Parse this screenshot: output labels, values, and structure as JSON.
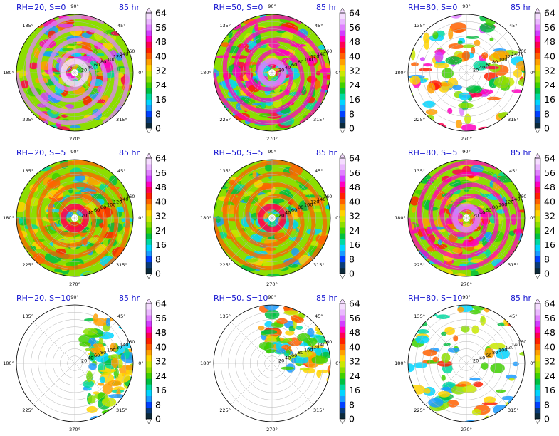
{
  "chart_data": [
    {
      "type": "polar-contourf",
      "title": "RH=20, S=0",
      "time": "85 hr",
      "rh": 20,
      "shear": 0,
      "max_level": "64",
      "core": "warm-asymmetric",
      "coverage": 0.92
    },
    {
      "type": "polar-contourf",
      "title": "RH=50, S=0",
      "time": "85 hr",
      "rh": 50,
      "shear": 0,
      "max_level": "56",
      "core": "warm-ring",
      "coverage": 0.95
    },
    {
      "type": "polar-contourf",
      "title": "RH=80, S=0",
      "time": "85 hr",
      "rh": 80,
      "shear": 0,
      "max_level": "64",
      "core": "compact-intense-ring",
      "coverage": 0.6
    },
    {
      "type": "polar-contourf",
      "title": "RH=20, S=5",
      "time": "85 hr",
      "rh": 20,
      "shear": 5,
      "max_level": "48",
      "core": "scattered-banding",
      "coverage": 0.85
    },
    {
      "type": "polar-contourf",
      "title": "RH=50, S=5",
      "time": "85 hr",
      "rh": 50,
      "shear": 5,
      "max_level": "48",
      "core": "asymmetric",
      "coverage": 0.93
    },
    {
      "type": "polar-contourf",
      "title": "RH=80, S=5",
      "time": "85 hr",
      "rh": 80,
      "shear": 5,
      "max_level": "56",
      "core": "asymmetric-ring",
      "coverage": 0.88
    },
    {
      "type": "polar-contourf",
      "title": "RH=20, S=10",
      "time": "85 hr",
      "rh": 20,
      "shear": 10,
      "max_level": "40",
      "core": "sparse-east",
      "coverage": 0.3
    },
    {
      "type": "polar-contourf",
      "title": "RH=50, S=10",
      "time": "85 hr",
      "rh": 50,
      "shear": 10,
      "max_level": "48",
      "core": "northeast-quadrant",
      "coverage": 0.45
    },
    {
      "type": "polar-contourf",
      "title": "RH=80, S=10",
      "time": "85 hr",
      "rh": 80,
      "shear": 10,
      "max_level": "48",
      "core": "scattered-cells",
      "coverage": 0.25
    }
  ],
  "angle_labels": [
    "90°",
    "45°",
    "0°",
    "315°",
    "270°",
    "225°",
    "180°",
    "135°"
  ],
  "radial_labels": [
    "20",
    "40",
    "60",
    "80",
    "100",
    "120",
    "140",
    "160"
  ],
  "colorbar": {
    "ticks": [
      "0",
      "8",
      "16",
      "24",
      "32",
      "40",
      "48",
      "56",
      "64"
    ],
    "colors": [
      "#0d2a3a",
      "#0a3b78",
      "#0040ff",
      "#1a9bff",
      "#00d5ff",
      "#00d9a0",
      "#00c040",
      "#3fd000",
      "#8cde00",
      "#c8e800",
      "#ffd400",
      "#ffa000",
      "#ff6000",
      "#ff2000",
      "#ff0050",
      "#ff00c0",
      "#d23cff",
      "#e080ff",
      "#eab8ff",
      "#f5dcff"
    ]
  }
}
